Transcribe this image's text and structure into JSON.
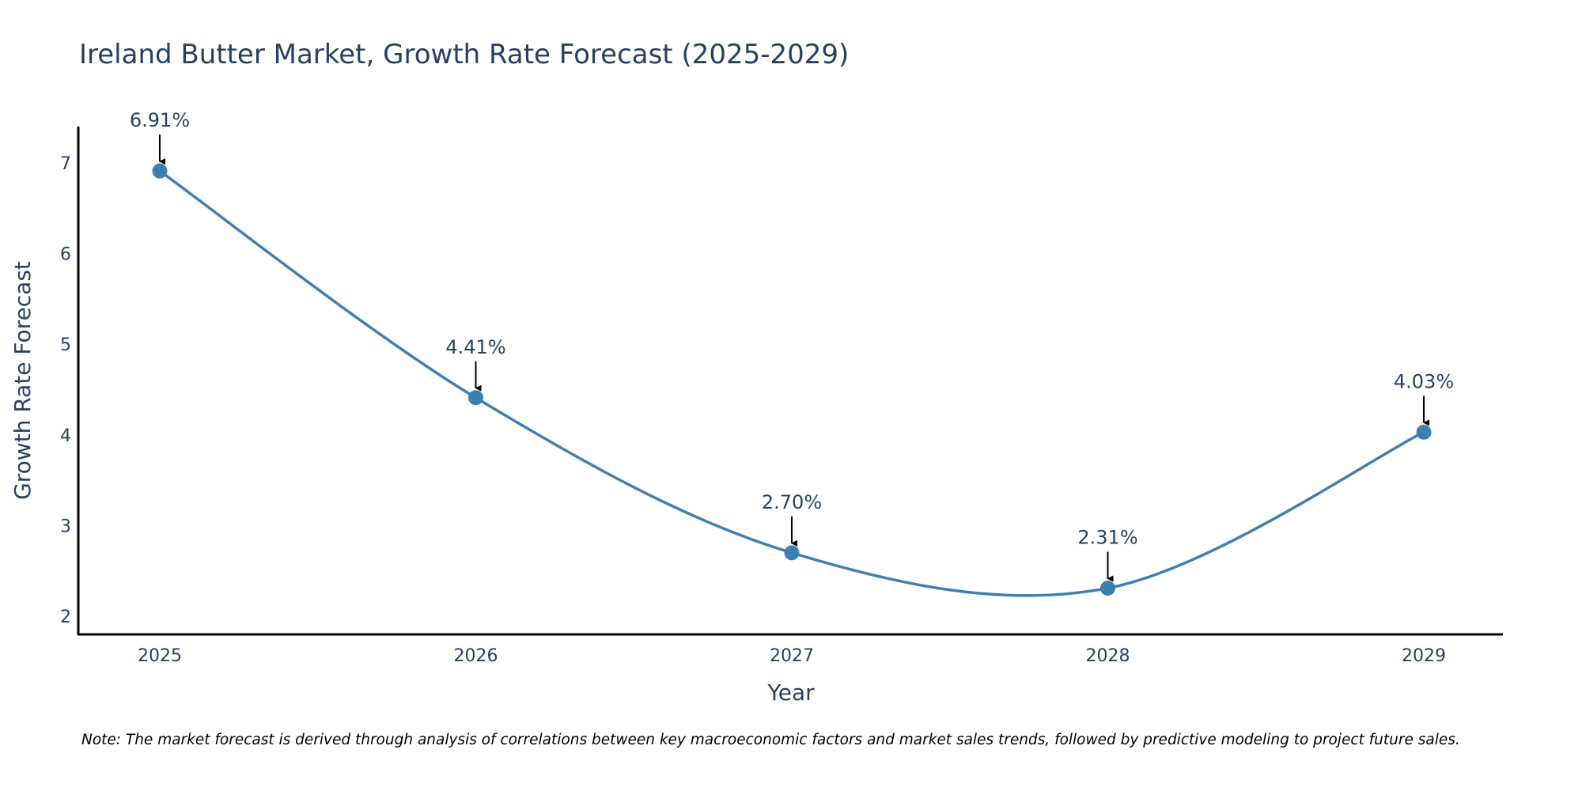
{
  "chart_data": {
    "type": "line",
    "title": "Ireland Butter Market, Growth Rate Forecast (2025-2029)",
    "xlabel": "Year",
    "ylabel": "Growth Rate Forecast",
    "categories": [
      "2025",
      "2026",
      "2027",
      "2028",
      "2029"
    ],
    "series": [
      {
        "name": "Growth Rate Forecast",
        "values": [
          6.91,
          4.41,
          2.7,
          2.31,
          4.03
        ],
        "labels": [
          "6.91%",
          "4.41%",
          "2.70%",
          "2.31%",
          "4.03%"
        ],
        "color": "#3d7fb0"
      }
    ],
    "yticks": [
      "2",
      "3",
      "4",
      "5",
      "6",
      "7"
    ],
    "ylim": [
      1.8,
      7.4
    ],
    "grid": false,
    "line_shape": "spline",
    "annotation_arrows": true
  },
  "note": "Note: The market forecast is derived through analysis of correlations between key macroeconomic factors and market sales trends, followed by predictive modeling to project future sales."
}
